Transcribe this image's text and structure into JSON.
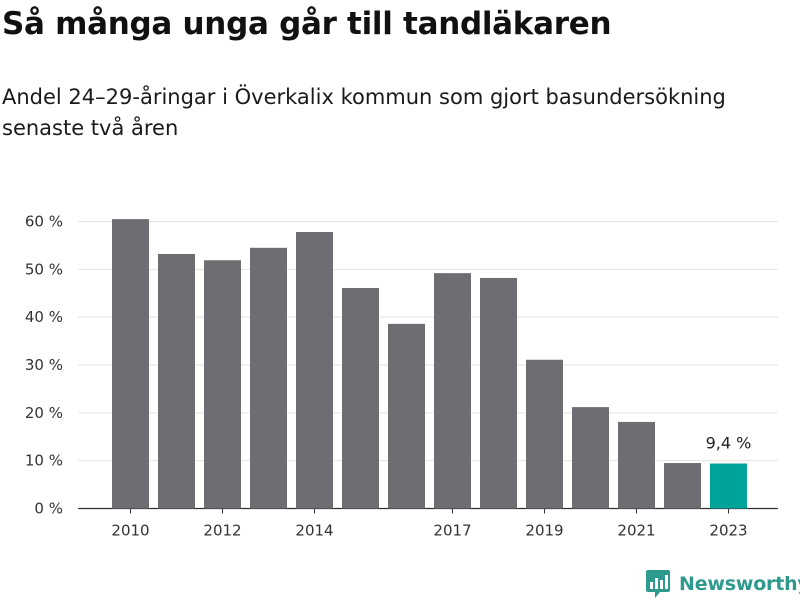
{
  "title": "Så många unga går till tandläkaren",
  "subtitle": "Andel 24–29-åringar i Överkalix kommun som gjort basundersökning senaste två åren",
  "brand": {
    "name": "Newsworthy",
    "color": "#2e9a8e",
    "icon": "newsworthy-chart-icon"
  },
  "colors": {
    "bar": "#6e6d72",
    "highlight": "#00a39a",
    "grid": "#e2e2e2"
  },
  "chart_data": {
    "type": "bar",
    "title": "Så många unga går till tandläkaren",
    "subtitle": "Andel 24–29-åringar i Överkalix kommun som gjort basundersökning senaste två åren",
    "categories": [
      "2010",
      "2011",
      "2012",
      "2013",
      "2014",
      "2015",
      "2016",
      "2017",
      "2018",
      "2019",
      "2020",
      "2021",
      "2022",
      "2023"
    ],
    "values": [
      60.5,
      53.2,
      51.9,
      54.5,
      57.8,
      46.1,
      38.6,
      49.2,
      48.2,
      31.1,
      21.2,
      18.1,
      9.5,
      9.4
    ],
    "x_tick_labels": [
      "2010",
      "2012",
      "2014",
      "2017",
      "2019",
      "2021",
      "2023"
    ],
    "y_ticks": [
      0,
      10,
      20,
      30,
      40,
      50,
      60
    ],
    "y_tick_labels": [
      "0 %",
      "10 %",
      "20 %",
      "30 %",
      "40 %",
      "50 %",
      "60 %"
    ],
    "ylim": [
      0,
      60
    ],
    "unit": "%",
    "grid": true,
    "highlight": {
      "category": "2023",
      "label": "9,4 %"
    },
    "xlabel": "",
    "ylabel": ""
  }
}
